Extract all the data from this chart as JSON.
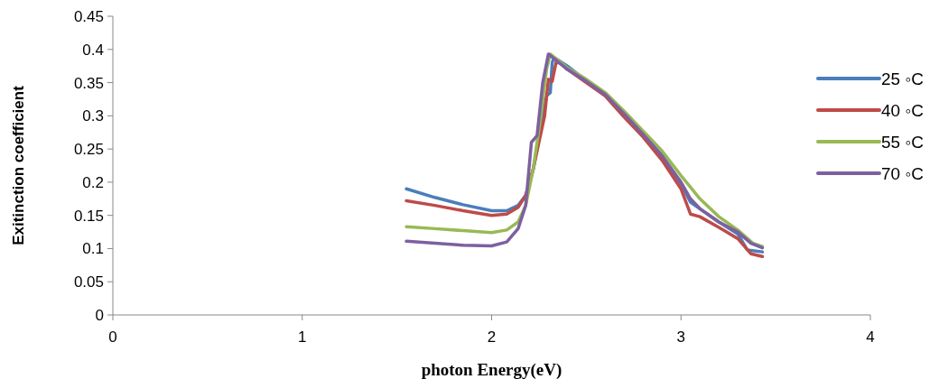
{
  "chart_data": {
    "type": "line",
    "xlabel": "photon Energy(eV)",
    "ylabel": "Exitinction coefficient",
    "xlim": [
      0,
      4
    ],
    "xticks": [
      0,
      1,
      2,
      3,
      4
    ],
    "ylim": [
      0,
      0.45
    ],
    "yticks": [
      0,
      0.05,
      0.1,
      0.15,
      0.2,
      0.25,
      0.3,
      0.35,
      0.4,
      0.45
    ],
    "grid": false,
    "legend": "right",
    "marker": "none",
    "line_style": "solid",
    "series": [
      {
        "name": "25 ◦C",
        "color": "#4a7ebb",
        "x": [
          1.55,
          1.7,
          1.85,
          2.0,
          2.08,
          2.14,
          2.18,
          2.22,
          2.26,
          2.29,
          2.31,
          2.32,
          2.33,
          2.4,
          2.5,
          2.6,
          2.7,
          2.8,
          2.9,
          3.0,
          3.05,
          3.1,
          3.2,
          3.3,
          3.35,
          3.43
        ],
        "values": [
          0.19,
          0.177,
          0.166,
          0.157,
          0.157,
          0.165,
          0.18,
          0.22,
          0.28,
          0.33,
          0.335,
          0.38,
          0.388,
          0.375,
          0.353,
          0.332,
          0.303,
          0.272,
          0.238,
          0.198,
          0.17,
          0.16,
          0.14,
          0.122,
          0.098,
          0.095
        ]
      },
      {
        "name": "40 ◦C",
        "color": "#be4b48",
        "x": [
          1.55,
          1.7,
          1.85,
          2.0,
          2.08,
          2.14,
          2.18,
          2.22,
          2.25,
          2.28,
          2.3,
          2.32,
          2.34,
          2.36,
          2.4,
          2.5,
          2.6,
          2.7,
          2.8,
          2.9,
          3.0,
          3.05,
          3.1,
          3.2,
          3.3,
          3.37,
          3.43
        ],
        "values": [
          0.172,
          0.165,
          0.157,
          0.15,
          0.152,
          0.162,
          0.18,
          0.22,
          0.26,
          0.3,
          0.355,
          0.352,
          0.38,
          0.38,
          0.37,
          0.35,
          0.33,
          0.298,
          0.268,
          0.233,
          0.19,
          0.152,
          0.148,
          0.132,
          0.115,
          0.092,
          0.088
        ]
      },
      {
        "name": "55 ◦C",
        "color": "#98b954",
        "x": [
          1.55,
          1.7,
          1.85,
          2.0,
          2.08,
          2.14,
          2.18,
          2.22,
          2.26,
          2.29,
          2.31,
          2.4,
          2.5,
          2.6,
          2.7,
          2.8,
          2.9,
          3.0,
          3.1,
          3.2,
          3.3,
          3.38,
          3.43
        ],
        "values": [
          0.133,
          0.13,
          0.127,
          0.124,
          0.128,
          0.14,
          0.165,
          0.22,
          0.3,
          0.37,
          0.393,
          0.372,
          0.355,
          0.335,
          0.307,
          0.277,
          0.247,
          0.21,
          0.175,
          0.148,
          0.128,
          0.108,
          0.103
        ]
      },
      {
        "name": "70 ◦C",
        "color": "#7d60a0",
        "x": [
          1.55,
          1.7,
          1.85,
          2.0,
          2.08,
          2.14,
          2.18,
          2.21,
          2.24,
          2.27,
          2.3,
          2.4,
          2.5,
          2.6,
          2.7,
          2.8,
          2.9,
          3.0,
          3.05,
          3.1,
          3.2,
          3.3,
          3.37,
          3.43
        ],
        "values": [
          0.111,
          0.108,
          0.105,
          0.104,
          0.11,
          0.13,
          0.165,
          0.26,
          0.27,
          0.35,
          0.393,
          0.37,
          0.352,
          0.332,
          0.303,
          0.272,
          0.24,
          0.2,
          0.175,
          0.16,
          0.14,
          0.125,
          0.108,
          0.101
        ]
      }
    ]
  }
}
